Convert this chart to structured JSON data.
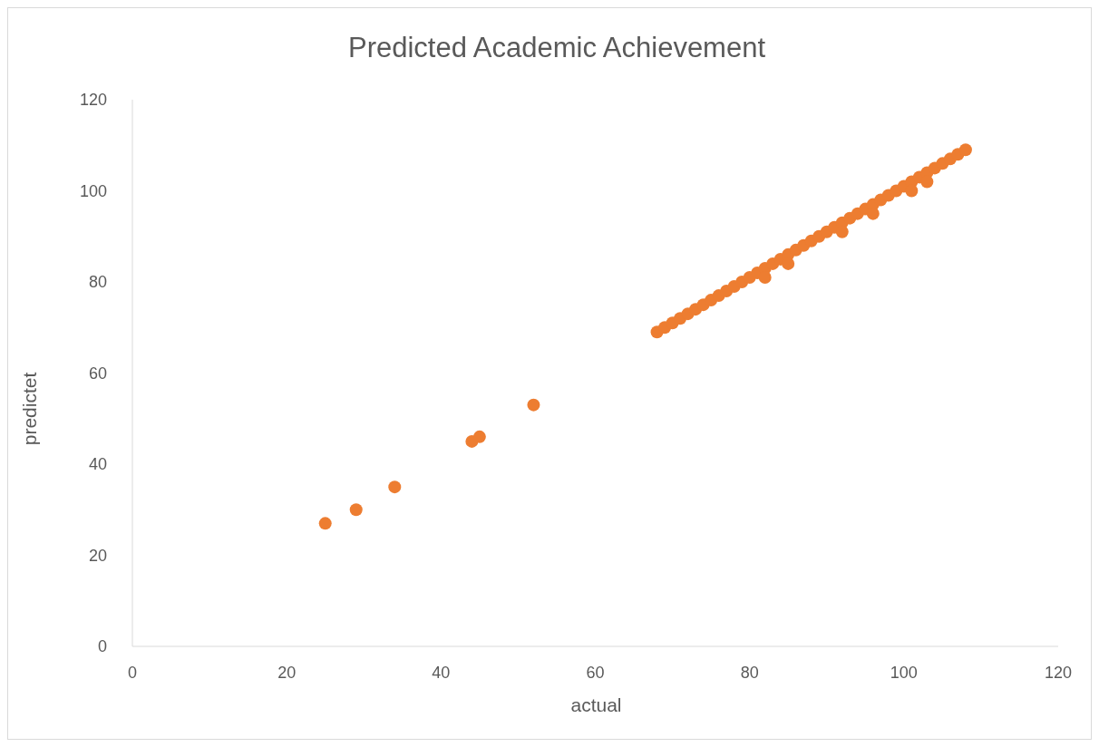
{
  "chart_data": {
    "type": "scatter",
    "title": "Predicted Academic Achievement",
    "xlabel": "actual",
    "ylabel": "predictet",
    "x": [
      25,
      29,
      34,
      44,
      45,
      52,
      68,
      69,
      70,
      71,
      72,
      73,
      74,
      75,
      76,
      77,
      78,
      79,
      80,
      81,
      82,
      83,
      84,
      85,
      86,
      87,
      88,
      89,
      90,
      91,
      92,
      93,
      94,
      95,
      96,
      97,
      98,
      99,
      100,
      101,
      102,
      103,
      104,
      105,
      106,
      107,
      108,
      82,
      85,
      92,
      96,
      101,
      103
    ],
    "values": [
      27,
      30,
      35,
      45,
      46,
      53,
      69,
      70,
      71,
      72,
      73,
      74,
      75,
      76,
      77,
      78,
      79,
      80,
      81,
      82,
      83,
      84,
      85,
      86,
      87,
      88,
      89,
      90,
      91,
      92,
      93,
      94,
      95,
      96,
      97,
      98,
      99,
      100,
      101,
      102,
      103,
      104,
      105,
      106,
      107,
      108,
      109,
      81,
      84,
      91,
      95,
      100,
      102
    ],
    "color": "#ed7d31",
    "marker": "circle",
    "xlim": [
      0,
      120
    ],
    "xticks": [
      0,
      20,
      40,
      60,
      80,
      100,
      120
    ],
    "ylim": [
      0,
      120
    ],
    "yticks": [
      0,
      20,
      40,
      60,
      80,
      100,
      120
    ],
    "grid": false,
    "legend": false
  }
}
